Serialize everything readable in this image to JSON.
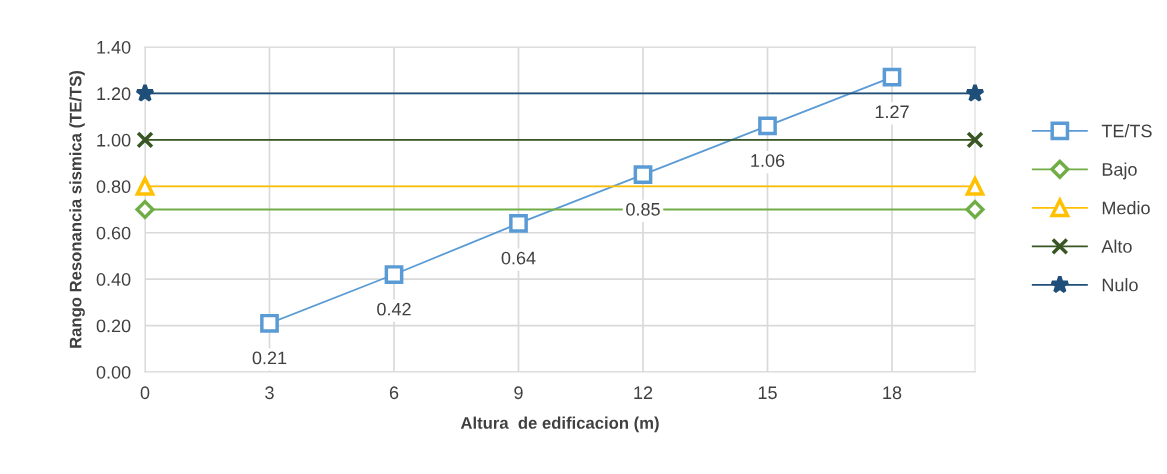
{
  "chart_data": {
    "type": "line",
    "xlabel": "Altura  de edificacion (m)",
    "ylabel": "Rango Resonancia sismica (TE/TS)",
    "xlim": [
      0,
      20
    ],
    "xticks": [
      0,
      3,
      6,
      9,
      12,
      15,
      18
    ],
    "ylim": [
      0,
      1.4
    ],
    "yticks": [
      {
        "value": 0,
        "label": "0.00"
      },
      {
        "value": 0.2,
        "label": "0.20"
      },
      {
        "value": 0.4,
        "label": "0.40"
      },
      {
        "value": 0.6,
        "label": "0.60"
      },
      {
        "value": 0.8,
        "label": "0.80"
      },
      {
        "value": 1.0,
        "label": "1.00"
      },
      {
        "value": 1.2,
        "label": "1.20"
      },
      {
        "value": 1.4,
        "label": "1.40"
      }
    ],
    "grid": true,
    "legend": "right",
    "series": [
      {
        "name": "TE/TS",
        "color": "#5b9bd5",
        "marker": "square",
        "x": [
          3,
          6,
          9,
          12,
          15,
          18
        ],
        "values": [
          0.21,
          0.42,
          0.64,
          0.85,
          1.06,
          1.27
        ],
        "value_labels": [
          "0.21",
          "0.42",
          "0.64",
          "0.85",
          "1.06",
          "1.27"
        ]
      },
      {
        "name": "Bajo",
        "color": "#70ad47",
        "marker": "diamond",
        "x": [
          0,
          20
        ],
        "values": [
          0.7,
          0.7
        ]
      },
      {
        "name": "Medio",
        "color": "#ffc000",
        "marker": "triangle",
        "x": [
          0,
          20
        ],
        "values": [
          0.8,
          0.8
        ]
      },
      {
        "name": "Alto",
        "color": "#375623",
        "marker": "cross",
        "x": [
          0,
          20
        ],
        "values": [
          1.0,
          1.0
        ]
      },
      {
        "name": "Nulo",
        "color": "#1f4e79",
        "marker": "star",
        "x": [
          0,
          20
        ],
        "values": [
          1.2,
          1.2
        ]
      }
    ]
  }
}
